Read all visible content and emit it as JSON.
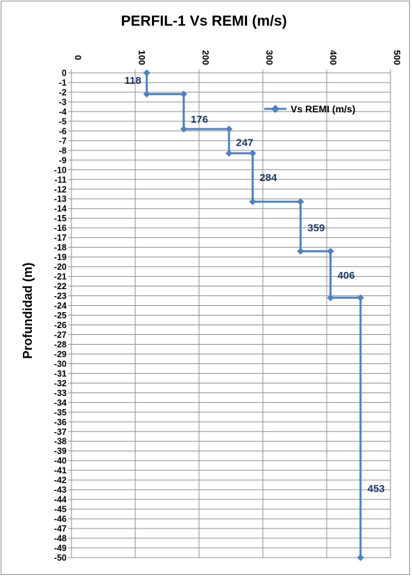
{
  "chart_data": {
    "type": "line",
    "title": "PERFIL-1   Vs REMI (m/s)",
    "xlabel": "",
    "ylabel": "Profundidad (m)",
    "xlim": [
      0,
      500
    ],
    "ylim": [
      -50,
      0
    ],
    "x_ticks": [
      0,
      100,
      200,
      300,
      400,
      500
    ],
    "y_ticks": [
      0,
      -1,
      -2,
      -3,
      -4,
      -5,
      -6,
      -7,
      -8,
      -9,
      -10,
      -11,
      -12,
      -13,
      -14,
      -15,
      -16,
      -17,
      -18,
      -19,
      -20,
      -21,
      -22,
      -23,
      -24,
      -25,
      -26,
      -27,
      -28,
      -29,
      -30,
      -31,
      -32,
      -33,
      -34,
      -35,
      -36,
      -37,
      -38,
      -39,
      -40,
      -41,
      -42,
      -43,
      -44,
      -45,
      -46,
      -47,
      -48,
      -49,
      -50
    ],
    "x_axis_position": "top",
    "grid": true,
    "legend_position": "top-right",
    "series": [
      {
        "name": "Vs REMI (m/s)",
        "color": "#4f81bd",
        "marker": "diamond",
        "points": [
          {
            "x": 118,
            "y": 0
          },
          {
            "x": 118,
            "y": -2.2
          },
          {
            "x": 176,
            "y": -2.2
          },
          {
            "x": 176,
            "y": -5.8
          },
          {
            "x": 247,
            "y": -5.8
          },
          {
            "x": 247,
            "y": -8.3
          },
          {
            "x": 284,
            "y": -8.3
          },
          {
            "x": 284,
            "y": -13.3
          },
          {
            "x": 359,
            "y": -13.3
          },
          {
            "x": 359,
            "y": -18.4
          },
          {
            "x": 406,
            "y": -18.4
          },
          {
            "x": 406,
            "y": -23.2
          },
          {
            "x": 453,
            "y": -23.2
          },
          {
            "x": 453,
            "y": -50
          }
        ]
      }
    ],
    "data_labels": [
      {
        "text": "118",
        "x": 118,
        "y": -0.8
      },
      {
        "text": "176",
        "x": 176,
        "y": -4.8
      },
      {
        "text": "247",
        "x": 247,
        "y": -7.2
      },
      {
        "text": "284",
        "x": 284,
        "y": -10.8
      },
      {
        "text": "359",
        "x": 359,
        "y": -16.0
      },
      {
        "text": "406",
        "x": 406,
        "y": -20.9
      },
      {
        "text": "453",
        "x": 453,
        "y": -42.9
      }
    ]
  }
}
